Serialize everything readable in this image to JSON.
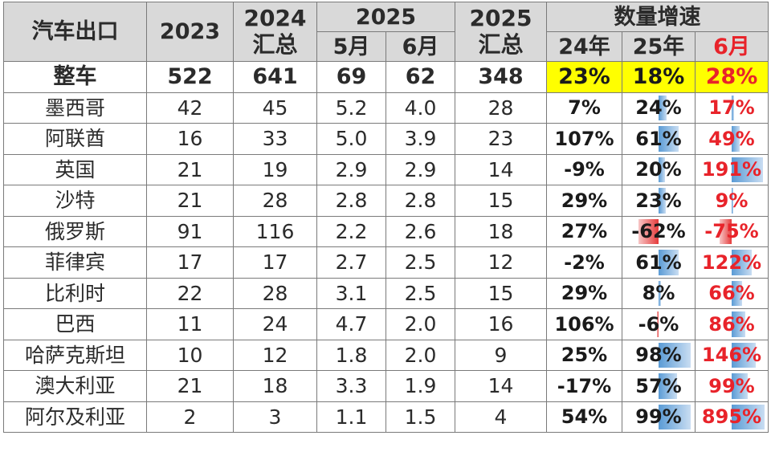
{
  "chart_data": {
    "type": "table",
    "header": {
      "label": "汽车出口",
      "col_2023": "2023",
      "col_2024": [
        "2024",
        "汇总"
      ],
      "col_2025_group": "2025",
      "col_may": "5月",
      "col_jun": "6月",
      "col_2025_total": [
        "2025",
        "汇总"
      ],
      "growth_group": "数量增速",
      "growth_24": "24年",
      "growth_25": "25年",
      "growth_jun": "6月"
    },
    "rows": [
      {
        "name": "整车",
        "y2023": "522",
        "y2024": "641",
        "may": "69",
        "jun": "62",
        "y2025": "348",
        "g24": "23%",
        "g25": "18%",
        "gjun": "28%",
        "g24v": 23,
        "g25v": 18,
        "gjunv": 28,
        "total": true
      },
      {
        "name": "墨西哥",
        "y2023": "42",
        "y2024": "45",
        "may": "5.2",
        "jun": "4.0",
        "y2025": "28",
        "g24": "7%",
        "g25": "24%",
        "gjun": "17%",
        "g24v": 7,
        "g25v": 24,
        "gjunv": 17
      },
      {
        "name": "阿联酋",
        "y2023": "16",
        "y2024": "33",
        "may": "5.0",
        "jun": "3.9",
        "y2025": "23",
        "g24": "107%",
        "g25": "61%",
        "gjun": "49%",
        "g24v": 107,
        "g25v": 61,
        "gjunv": 49
      },
      {
        "name": "英国",
        "y2023": "21",
        "y2024": "19",
        "may": "2.9",
        "jun": "2.9",
        "y2025": "14",
        "g24": "-9%",
        "g25": "20%",
        "gjun": "191%",
        "g24v": -9,
        "g25v": 20,
        "gjunv": 191
      },
      {
        "name": "沙特",
        "y2023": "21",
        "y2024": "28",
        "may": "2.8",
        "jun": "2.8",
        "y2025": "15",
        "g24": "29%",
        "g25": "23%",
        "gjun": "9%",
        "g24v": 29,
        "g25v": 23,
        "gjunv": 9
      },
      {
        "name": "俄罗斯",
        "y2023": "91",
        "y2024": "116",
        "may": "2.2",
        "jun": "2.6",
        "y2025": "18",
        "g24": "27%",
        "g25": "-62%",
        "gjun": "-75%",
        "g24v": 27,
        "g25v": -62,
        "gjunv": -75
      },
      {
        "name": "菲律宾",
        "y2023": "17",
        "y2024": "17",
        "may": "2.7",
        "jun": "2.5",
        "y2025": "12",
        "g24": "-2%",
        "g25": "61%",
        "gjun": "122%",
        "g24v": -2,
        "g25v": 61,
        "gjunv": 122
      },
      {
        "name": "比利时",
        "y2023": "22",
        "y2024": "28",
        "may": "3.1",
        "jun": "2.5",
        "y2025": "15",
        "g24": "29%",
        "g25": "8%",
        "gjun": "66%",
        "g24v": 29,
        "g25v": 8,
        "gjunv": 66
      },
      {
        "name": "巴西",
        "y2023": "11",
        "y2024": "24",
        "may": "4.7",
        "jun": "2.0",
        "y2025": "16",
        "g24": "106%",
        "g25": "-6%",
        "gjun": "86%",
        "g24v": 106,
        "g25v": -6,
        "gjunv": 86
      },
      {
        "name": "哈萨克斯坦",
        "y2023": "10",
        "y2024": "12",
        "may": "1.8",
        "jun": "2.0",
        "y2025": "9",
        "g24": "25%",
        "g25": "98%",
        "gjun": "146%",
        "g24v": 25,
        "g25v": 98,
        "gjunv": 146
      },
      {
        "name": "澳大利亚",
        "y2023": "21",
        "y2024": "18",
        "may": "3.3",
        "jun": "1.9",
        "y2025": "14",
        "g24": "-17%",
        "g25": "57%",
        "gjun": "99%",
        "g24v": -17,
        "g25v": 57,
        "gjunv": 99
      },
      {
        "name": "阿尔及利亚",
        "y2023": "2",
        "y2024": "3",
        "may": "1.1",
        "jun": "1.5",
        "y2025": "4",
        "g24": "54%",
        "g25": "99%",
        "gjun": "895%",
        "g24v": 54,
        "g25v": 99,
        "gjunv": 895
      }
    ]
  }
}
